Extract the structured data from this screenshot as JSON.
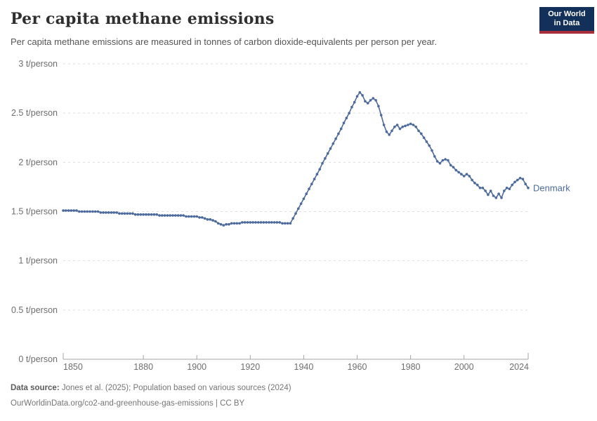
{
  "header": {
    "title": "Per capita methane emissions",
    "subtitle": "Per capita methane emissions are measured in tonnes of carbon dioxide-equivalents per person per year.",
    "logo": {
      "line1": "Our World",
      "line2": "in Data"
    }
  },
  "chart_data": {
    "type": "line",
    "title": "Per capita methane emissions",
    "xlabel": "",
    "ylabel": "",
    "unit": "t/person",
    "xlim": [
      1850,
      2024
    ],
    "ylim": [
      0,
      3
    ],
    "x_ticks": [
      1850,
      1880,
      1900,
      1920,
      1940,
      1960,
      1980,
      2000,
      2024
    ],
    "y_ticks": [
      0,
      0.5,
      1,
      1.5,
      2,
      2.5,
      3
    ],
    "y_tick_labels": [
      "0 t/person",
      "0.5 t/person",
      "1 t/person",
      "1.5 t/person",
      "2 t/person",
      "2.5 t/person",
      "3 t/person"
    ],
    "grid": "horizontal-dashed",
    "legend_position": "end-of-line-label",
    "x_years": {
      "start": 1850,
      "end": 2024,
      "step": 1
    },
    "series": [
      {
        "name": "Denmark",
        "color": "#4c6a9c",
        "values": [
          1.51,
          1.51,
          1.51,
          1.51,
          1.51,
          1.51,
          1.5,
          1.5,
          1.5,
          1.5,
          1.5,
          1.5,
          1.5,
          1.5,
          1.49,
          1.49,
          1.49,
          1.49,
          1.49,
          1.49,
          1.49,
          1.48,
          1.48,
          1.48,
          1.48,
          1.48,
          1.48,
          1.47,
          1.47,
          1.47,
          1.47,
          1.47,
          1.47,
          1.47,
          1.47,
          1.47,
          1.46,
          1.46,
          1.46,
          1.46,
          1.46,
          1.46,
          1.46,
          1.46,
          1.46,
          1.46,
          1.45,
          1.45,
          1.45,
          1.45,
          1.45,
          1.44,
          1.44,
          1.43,
          1.42,
          1.42,
          1.41,
          1.4,
          1.38,
          1.37,
          1.36,
          1.37,
          1.37,
          1.38,
          1.38,
          1.38,
          1.38,
          1.39,
          1.39,
          1.39,
          1.39,
          1.39,
          1.39,
          1.39,
          1.39,
          1.39,
          1.39,
          1.39,
          1.39,
          1.39,
          1.39,
          1.39,
          1.38,
          1.38,
          1.38,
          1.38,
          1.43,
          1.48,
          1.53,
          1.58,
          1.63,
          1.68,
          1.73,
          1.78,
          1.83,
          1.88,
          1.93,
          1.99,
          2.04,
          2.09,
          2.14,
          2.19,
          2.24,
          2.29,
          2.34,
          2.4,
          2.45,
          2.5,
          2.56,
          2.61,
          2.67,
          2.71,
          2.68,
          2.62,
          2.6,
          2.63,
          2.65,
          2.63,
          2.57,
          2.48,
          2.38,
          2.31,
          2.28,
          2.32,
          2.36,
          2.38,
          2.34,
          2.36,
          2.37,
          2.38,
          2.39,
          2.38,
          2.36,
          2.32,
          2.29,
          2.25,
          2.21,
          2.17,
          2.12,
          2.06,
          2.01,
          1.99,
          2.02,
          2.03,
          2.02,
          1.97,
          1.95,
          1.92,
          1.9,
          1.88,
          1.86,
          1.88,
          1.86,
          1.82,
          1.79,
          1.77,
          1.74,
          1.74,
          1.71,
          1.67,
          1.71,
          1.66,
          1.64,
          1.68,
          1.64,
          1.71,
          1.74,
          1.73,
          1.77,
          1.8,
          1.82,
          1.84,
          1.83,
          1.78,
          1.74
        ]
      }
    ]
  },
  "footer": {
    "datasource_label": "Data source:",
    "datasource_text": " Jones et al. (2025); Population based on various sources (2024)",
    "link_line": "OurWorldinData.org/co2-and-greenhouse-gas-emissions | CC BY"
  },
  "colors": {
    "line": "#4c6a9c",
    "logo_bg": "#12305a",
    "logo_accent": "#a82e3c",
    "grid": "#dedede",
    "axis": "#a5a5a5",
    "tick_text": "#6e6e6e",
    "title_text": "#2f2f2f",
    "subtitle_text": "#555555",
    "footer_text": "#757575"
  }
}
